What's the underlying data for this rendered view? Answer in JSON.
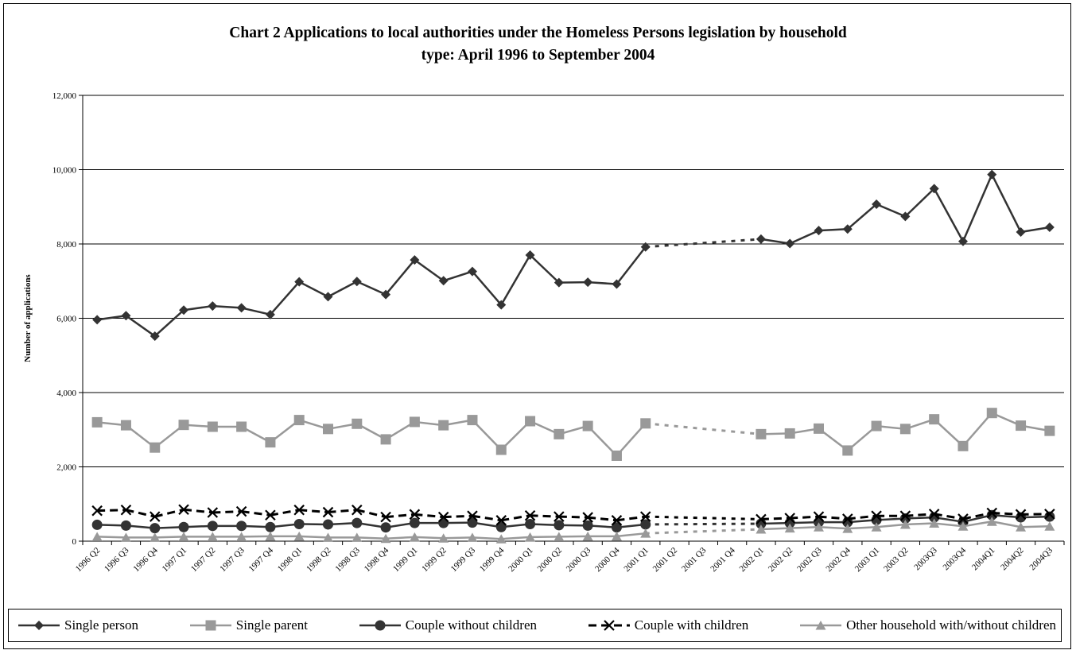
{
  "chart_data": {
    "type": "line",
    "title_line1": "Chart 2  Applications to local authorities under the Homeless Persons legislation by household",
    "title_line2": "type: April 1996 to September 2004",
    "ylabel": "Number of applications",
    "xlabel": "",
    "ylim": [
      0,
      12000
    ],
    "yticks": [
      "0",
      "2,000",
      "4,000",
      "6,000",
      "8,000",
      "10,000",
      "12,000"
    ],
    "grid": "horizontal",
    "legend_position": "bottom",
    "categories": [
      "1996 Q2",
      "1996 Q3",
      "1996 Q4",
      "1997 Q1",
      "1997 Q2",
      "1997 Q3",
      "1997 Q4",
      "1998 Q1",
      "1998 Q2",
      "1998 Q3",
      "1998 Q4",
      "1999 Q1",
      "1999 Q2",
      "1999 Q3",
      "1999 Q4",
      "2000 Q1",
      "2000 Q2",
      "2000 Q3",
      "2000 Q4",
      "2001 Q1",
      "2001 Q2",
      "2001 Q3",
      "2001 Q4",
      "2002 Q1",
      "2002 Q2",
      "2002 Q3",
      "2002 Q4",
      "2003 Q1",
      "2003 Q2",
      "2003Q3",
      "2003Q4",
      "2004Q1",
      "2004Q2",
      "2004Q3"
    ],
    "series": [
      {
        "name": "Single person",
        "color": "#333333",
        "marker": "diamond",
        "dash": "solid",
        "values": [
          5960,
          6070,
          5520,
          6220,
          6330,
          6280,
          6100,
          6980,
          6580,
          6990,
          6640,
          7570,
          7010,
          7260,
          6360,
          7700,
          6960,
          6970,
          6920,
          7920,
          null,
          null,
          null,
          8130,
          8010,
          8360,
          8400,
          9070,
          8740,
          9490,
          8070,
          9870,
          8320,
          8450
        ]
      },
      {
        "name": "Single parent",
        "color": "#999999",
        "marker": "square",
        "dash": "solid",
        "values": [
          3200,
          3120,
          2520,
          3130,
          3080,
          3080,
          2660,
          3260,
          3020,
          3160,
          2740,
          3210,
          3120,
          3260,
          2460,
          3230,
          2880,
          3100,
          2300,
          3170,
          null,
          null,
          null,
          2880,
          2900,
          3030,
          2440,
          3100,
          3020,
          3280,
          2560,
          3450,
          3110,
          2970
        ]
      },
      {
        "name": "Couple without children",
        "color": "#333333",
        "marker": "circle",
        "dash": "solid",
        "values": [
          440,
          420,
          350,
          380,
          410,
          410,
          380,
          460,
          450,
          490,
          370,
          490,
          490,
          500,
          380,
          460,
          430,
          420,
          370,
          450,
          null,
          null,
          null,
          470,
          490,
          510,
          510,
          570,
          610,
          640,
          520,
          700,
          640,
          660
        ]
      },
      {
        "name": "Couple with children",
        "color": "#000000",
        "marker": "x",
        "dash": "dashed",
        "values": [
          820,
          840,
          660,
          850,
          770,
          800,
          700,
          840,
          780,
          840,
          650,
          720,
          650,
          680,
          560,
          690,
          660,
          640,
          560,
          660,
          null,
          null,
          null,
          590,
          620,
          660,
          600,
          680,
          680,
          730,
          600,
          760,
          720,
          730
        ]
      },
      {
        "name": "Other household with/without children",
        "color": "#999999",
        "marker": "triangle",
        "dash": "solid",
        "values": [
          120,
          100,
          100,
          120,
          120,
          120,
          130,
          130,
          100,
          100,
          70,
          110,
          80,
          100,
          60,
          110,
          120,
          130,
          130,
          210,
          null,
          null,
          null,
          320,
          350,
          380,
          340,
          380,
          450,
          480,
          400,
          530,
          380,
          400
        ]
      }
    ]
  }
}
